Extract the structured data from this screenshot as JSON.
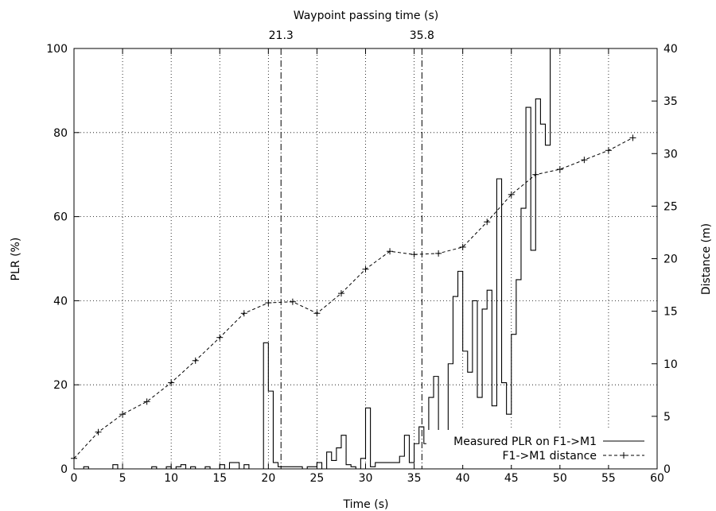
{
  "chart_data": {
    "type": "line",
    "xlabel": "Time (s)",
    "ylabel_left": "PLR (%)",
    "ylabel_right": "Distance (m)",
    "top_axis_label": "Waypoint passing time (s)",
    "xlim": [
      0,
      60
    ],
    "ylim_left": [
      0,
      100
    ],
    "ylim_right": [
      0,
      40
    ],
    "x_ticks": [
      "0",
      "5",
      "10",
      "15",
      "20",
      "25",
      "30",
      "35",
      "40",
      "45",
      "50",
      "55",
      "60"
    ],
    "y_left_ticks": [
      "0",
      "20",
      "40",
      "60",
      "80",
      "100"
    ],
    "y_right_ticks": [
      "0",
      "5",
      "10",
      "15",
      "20",
      "25",
      "30",
      "35",
      "40"
    ],
    "grid": true,
    "legend_position": "bottom-right",
    "waypoints": [
      {
        "x": 21.3,
        "label": "21.3"
      },
      {
        "x": 35.8,
        "label": "35.8"
      }
    ],
    "series": [
      {
        "name": "Measured PLR on F1->M1",
        "axis": "left",
        "style": "step",
        "color": "#000000",
        "x": [
          0.4,
          1.0,
          1.5,
          2.0,
          2.5,
          3.0,
          3.5,
          4.0,
          4.5,
          5.0,
          5.5,
          6.0,
          6.5,
          7.0,
          7.5,
          8.0,
          8.5,
          9.0,
          9.5,
          10.0,
          10.5,
          11.0,
          11.5,
          12.0,
          12.5,
          13.0,
          13.5,
          14.0,
          14.5,
          15.0,
          15.5,
          16.0,
          16.5,
          17.0,
          17.5,
          18.0,
          18.5,
          19.0,
          19.5,
          20.0,
          20.5,
          21.0,
          21.5,
          22.0,
          22.5,
          23.0,
          23.5,
          24.0,
          24.5,
          25.0,
          25.5,
          26.0,
          26.5,
          27.0,
          27.5,
          28.0,
          28.5,
          29.0,
          29.5,
          30.0,
          30.5,
          31.0,
          31.5,
          32.0,
          32.5,
          33.0,
          33.5,
          34.0,
          34.5,
          35.0,
          35.5,
          36.0,
          36.5,
          37.0,
          37.5,
          38.0,
          38.5,
          39.0,
          39.5,
          40.0,
          40.5,
          41.0,
          41.5,
          42.0,
          42.5,
          43.0,
          43.5,
          44.0,
          44.5,
          45.0,
          45.5,
          46.0,
          46.5,
          47.0,
          47.5,
          48.0,
          48.5,
          49.0,
          49.5,
          50.0
        ],
        "values": [
          0,
          0.5,
          0,
          0,
          0,
          0,
          0,
          1,
          0,
          0,
          0,
          0,
          0,
          0,
          0,
          0.5,
          0,
          0,
          0.5,
          0,
          0.5,
          1,
          0,
          0.5,
          0,
          0,
          0.5,
          0,
          0,
          1,
          0,
          1.5,
          1.5,
          0,
          1,
          0,
          0,
          0,
          30,
          18.5,
          1.5,
          0.5,
          0.5,
          0.5,
          0.5,
          0.5,
          0,
          0.5,
          0.5,
          1.5,
          0,
          4,
          2,
          5,
          8,
          1,
          0.5,
          0,
          2.5,
          14.5,
          0.5,
          1.5,
          1.5,
          1.5,
          1.5,
          1.5,
          3,
          8,
          1.5,
          6,
          10,
          6,
          17,
          22,
          3.5,
          6,
          25,
          41,
          47,
          28,
          23,
          40,
          17,
          38,
          42.5,
          15,
          69,
          20.5,
          13,
          32,
          45,
          62,
          86,
          52,
          88,
          82,
          77,
          100,
          100,
          100
        ]
      },
      {
        "name": "F1->M1 distance",
        "axis": "right",
        "style": "dashed-line-with-plus-markers",
        "color": "#000000",
        "x": [
          0,
          2.5,
          5,
          7.5,
          10,
          12.5,
          15,
          17.5,
          20,
          22.5,
          25,
          27.5,
          30,
          32.5,
          35,
          37.5,
          40,
          42.5,
          45,
          47.5,
          50,
          52.5,
          55,
          57.5
        ],
        "values": [
          1,
          3.5,
          5.2,
          6.4,
          8.2,
          10.3,
          12.5,
          14.8,
          15.8,
          15.9,
          14.8,
          16.7,
          19,
          20.7,
          20.4,
          20.5,
          21.1,
          23.5,
          26.1,
          28,
          28.5,
          29.4,
          30.3,
          31.5
        ]
      }
    ]
  }
}
